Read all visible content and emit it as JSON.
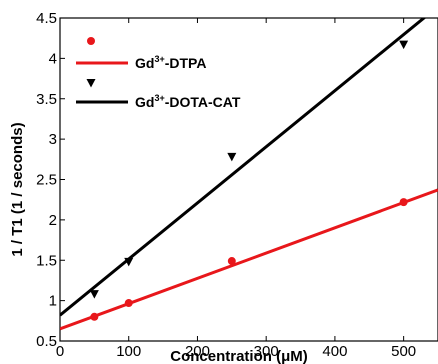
{
  "chart_data": {
    "type": "scatter",
    "xlabel": "Concentration (μM)",
    "ylabel": "1 / T1 (1 / seconds)",
    "xlim": [
      0,
      550
    ],
    "ylim": [
      0.5,
      4.5
    ],
    "x_ticks": [
      0,
      100,
      200,
      300,
      400,
      500
    ],
    "y_ticks": [
      0.5,
      1,
      1.5,
      2,
      2.5,
      3,
      3.5,
      4,
      4.5
    ],
    "grid": false,
    "legend_position": "top-left",
    "series": [
      {
        "name": "Gd3+-DTPA",
        "legend_base": "Gd",
        "legend_sup": "3+",
        "legend_rest": "-DTPA",
        "marker": "circle",
        "color": "#e8171b",
        "points": [
          {
            "x": 50,
            "y": 0.8
          },
          {
            "x": 100,
            "y": 0.97
          },
          {
            "x": 250,
            "y": 1.49
          },
          {
            "x": 500,
            "y": 2.22
          }
        ],
        "fit": {
          "intercept": 0.65,
          "slope": 0.00313
        }
      },
      {
        "name": "Gd3+-DOTA-CAT",
        "legend_base": "Gd",
        "legend_sup": "3+",
        "legend_rest": "-DOTA-CAT",
        "marker": "triangle-down",
        "color": "#000000",
        "points": [
          {
            "x": 50,
            "y": 1.08
          },
          {
            "x": 100,
            "y": 1.48
          },
          {
            "x": 250,
            "y": 2.78
          },
          {
            "x": 500,
            "y": 4.17
          }
        ],
        "fit": {
          "intercept": 0.82,
          "slope": 0.00695
        }
      }
    ]
  }
}
